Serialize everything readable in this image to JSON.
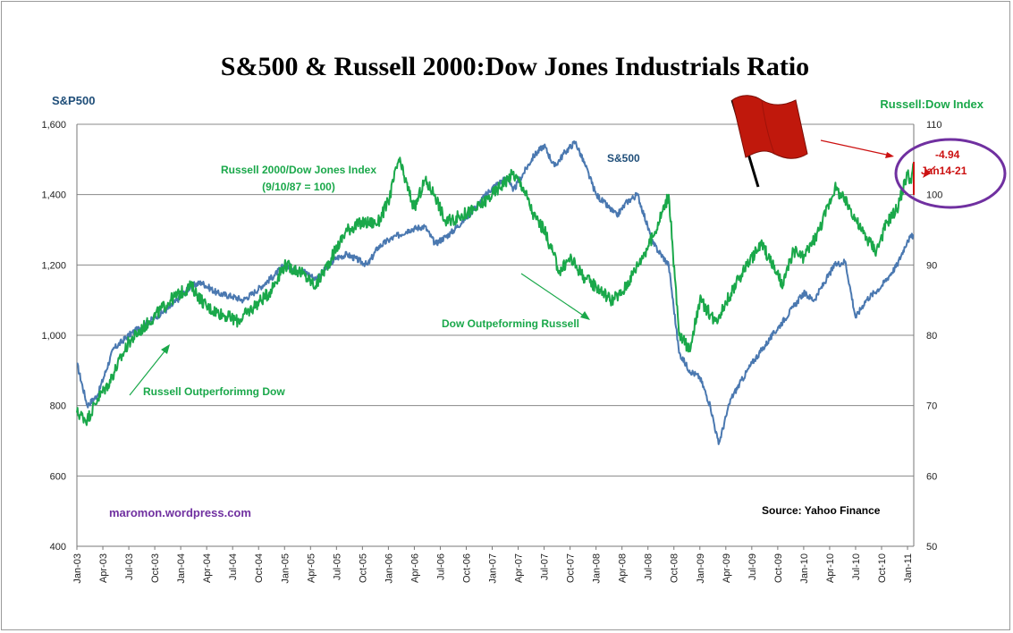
{
  "chart_data": {
    "type": "line",
    "title": "S&500 & Russell 2000:Dow Jones Industrials Ratio",
    "ylabel_left": "S&P500",
    "ylabel_right": "Russell:Dow Index",
    "ylim_left": [
      400,
      1600
    ],
    "ylim_right": [
      50,
      110
    ],
    "yticks_left": [
      "400",
      "600",
      "800",
      "1,000",
      "1,200",
      "1,400",
      "1,600"
    ],
    "yticks_right": [
      "50",
      "60",
      "70",
      "80",
      "90",
      "100",
      "110"
    ],
    "grid": true,
    "x_tick_labels": [
      "Jan-03",
      "Apr-03",
      "Jul-03",
      "Oct-03",
      "Jan-04",
      "Apr-04",
      "Jul-04",
      "Oct-04",
      "Jan-05",
      "Apr-05",
      "Jul-05",
      "Oct-05",
      "Jan-06",
      "Apr-06",
      "Jul-06",
      "Oct-06",
      "Jan-07",
      "Apr-07",
      "Jul-07",
      "Oct-07",
      "Jan-08",
      "Apr-08",
      "Jul-08",
      "Oct-08",
      "Jan-09",
      "Apr-09",
      "Jul-09",
      "Oct-09",
      "Jan-10",
      "Apr-10",
      "Jul-10",
      "Oct-10",
      "Jan-11"
    ],
    "series": [
      {
        "name": "S&500",
        "axis": "left",
        "color": "#4a78b0",
        "x": [
          2003.0,
          2003.1,
          2003.2,
          2003.35,
          2003.5,
          2003.7,
          2003.9,
          2004.1,
          2004.2,
          2004.35,
          2004.5,
          2004.6,
          2004.7,
          2004.9,
          2005.0,
          2005.2,
          2005.3,
          2005.5,
          2005.6,
          2005.8,
          2005.9,
          2006.0,
          2006.2,
          2006.35,
          2006.45,
          2006.6,
          2006.8,
          2007.0,
          2007.15,
          2007.2,
          2007.4,
          2007.5,
          2007.6,
          2007.7,
          2007.8,
          2007.9,
          2008.0,
          2008.2,
          2008.3,
          2008.4,
          2008.55,
          2008.7,
          2008.8,
          2008.9,
          2009.0,
          2009.1,
          2009.18,
          2009.3,
          2009.5,
          2009.7,
          2009.9,
          2010.0,
          2010.1,
          2010.3,
          2010.4,
          2010.5,
          2010.6,
          2010.75,
          2010.9,
          2011.0,
          2011.06
        ],
        "y": [
          920,
          800,
          830,
          960,
          1000,
          1040,
          1080,
          1140,
          1150,
          1120,
          1110,
          1100,
          1120,
          1170,
          1200,
          1180,
          1160,
          1220,
          1230,
          1200,
          1250,
          1270,
          1300,
          1310,
          1260,
          1290,
          1350,
          1420,
          1450,
          1410,
          1510,
          1540,
          1480,
          1520,
          1550,
          1480,
          1400,
          1340,
          1380,
          1400,
          1260,
          1200,
          950,
          900,
          880,
          800,
          690,
          820,
          920,
          1000,
          1080,
          1120,
          1100,
          1200,
          1210,
          1050,
          1100,
          1140,
          1200,
          1270,
          1285
        ]
      },
      {
        "name": "Russell 2000/Dow Jones  Index",
        "axis": "right",
        "color": "#1aa84a",
        "x": [
          2003.0,
          2003.1,
          2003.2,
          2003.3,
          2003.5,
          2003.7,
          2003.9,
          2004.1,
          2004.25,
          2004.4,
          2004.55,
          2004.7,
          2004.85,
          2005.0,
          2005.15,
          2005.3,
          2005.45,
          2005.6,
          2005.75,
          2005.9,
          2006.0,
          2006.1,
          2006.25,
          2006.35,
          2006.45,
          2006.55,
          2006.7,
          2006.85,
          2007.0,
          2007.2,
          2007.3,
          2007.4,
          2007.5,
          2007.65,
          2007.75,
          2007.9,
          2008.0,
          2008.15,
          2008.25,
          2008.4,
          2008.55,
          2008.7,
          2008.8,
          2008.9,
          2009.0,
          2009.15,
          2009.3,
          2009.45,
          2009.6,
          2009.8,
          2009.9,
          2010.0,
          2010.15,
          2010.3,
          2010.45,
          2010.55,
          2010.7,
          2010.8,
          2010.9,
          2011.0,
          2011.03,
          2011.06
        ],
        "y": [
          69,
          68,
          71,
          73,
          79,
          82,
          85,
          87,
          84,
          83,
          82,
          84,
          86,
          90,
          89,
          87,
          91,
          95,
          96,
          96,
          99,
          105,
          98,
          102,
          100,
          96,
          97,
          98,
          100,
          103,
          101,
          97,
          95,
          89,
          91,
          88,
          87,
          85,
          86,
          90,
          94,
          100,
          80,
          78,
          85,
          82,
          86,
          90,
          93,
          87,
          92,
          91,
          95,
          101,
          98,
          95,
          92,
          96,
          98,
          103,
          102,
          104
        ]
      }
    ],
    "annotations": {
      "sp500_label": "S&500",
      "russell_label_line1": "Russell 2000/Dow Jones  Index",
      "russell_label_line2": "(9/10/87  = 100)",
      "dow_outperforming": "Dow Outpeforming Russell",
      "russell_outperforming": "Russell Outperforimng Dow",
      "change_value": "-4.94",
      "change_period": "Jan14-21",
      "site": "maromon.wordpress.com",
      "source": "Source:  Yahoo Finance"
    },
    "colors": {
      "left_axis_title": "#1f4e79",
      "right_axis_title": "#1aa84a",
      "annotation_red": "#cc1111",
      "circle": "#7030a0",
      "site_text": "#7030a0",
      "flag": "#c0180c",
      "grid": "#888888"
    },
    "icons": [
      "red-flag-icon"
    ]
  }
}
